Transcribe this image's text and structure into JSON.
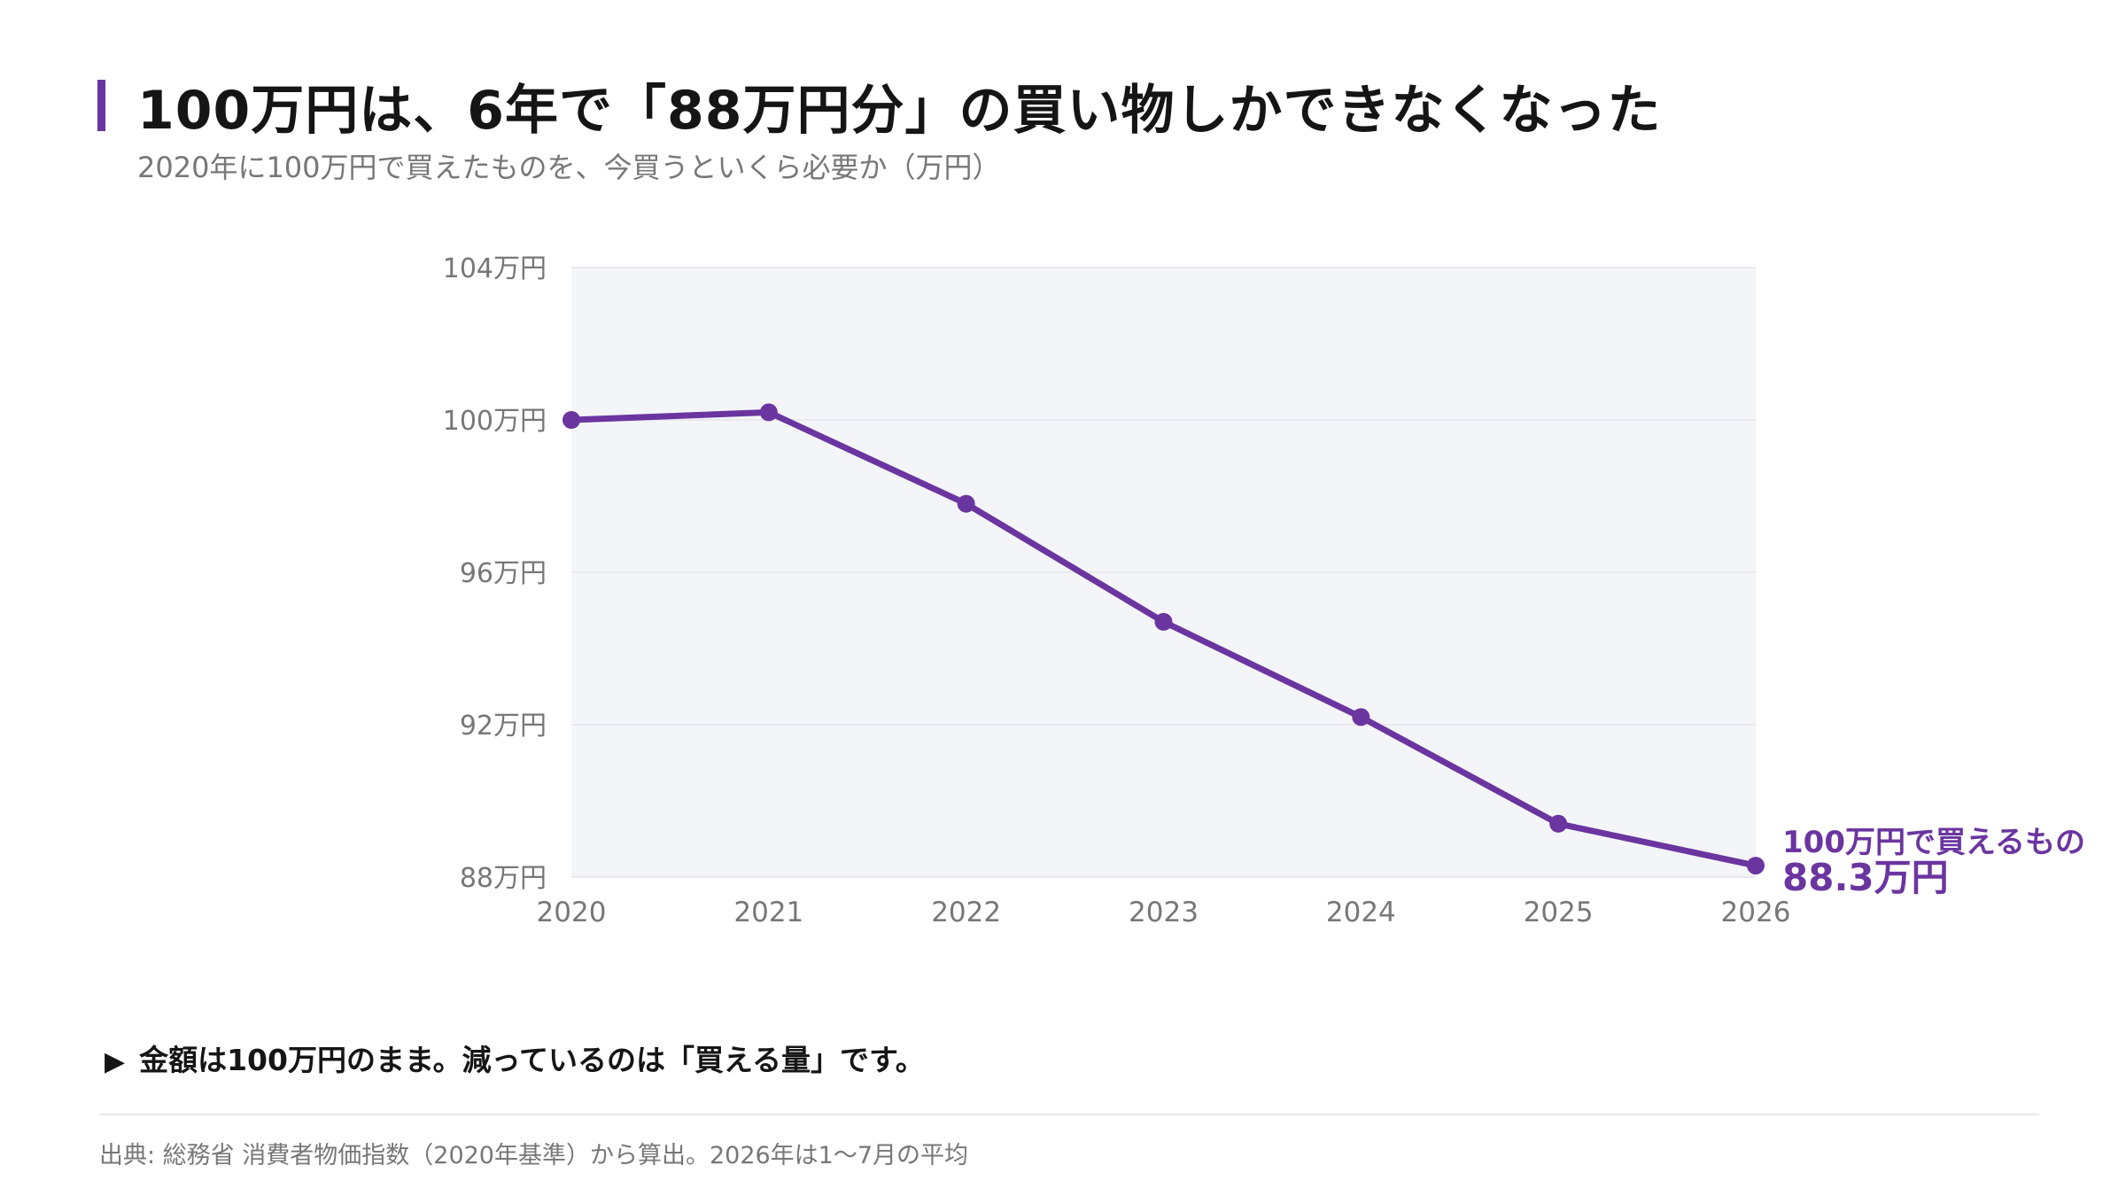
{
  "header": {
    "title": "100万円は、6年で「88万円分」の買い物しかできなくなった",
    "subtitle": "2020年に100万円で買えたものを、今買うといくら必要か（万円）"
  },
  "chart_data": {
    "type": "line",
    "title": "100万円は、6年で「88万円分」の買い物しかできなくなった",
    "subtitle": "2020年に100万円で買えたものを、今買うといくら必要か（万円）",
    "x": [
      "2020",
      "2021",
      "2022",
      "2023",
      "2024",
      "2025",
      "2026"
    ],
    "series": [
      {
        "name": "100万円で買えるもの",
        "values": [
          100.0,
          100.2,
          97.8,
          94.7,
          92.2,
          89.4,
          88.3
        ]
      }
    ],
    "yticks": [
      104,
      100,
      96,
      92,
      88
    ],
    "ytick_labels": [
      "104万円",
      "100万円",
      "96万円",
      "92万円",
      "88万円"
    ],
    "ylim": [
      88,
      104
    ],
    "grid": true,
    "end_label": {
      "series_name": "100万円で買えるもの",
      "value_label": "88.3万円"
    },
    "colors": {
      "line": "#6b35a0",
      "plot_background": "#f4f5f9",
      "grid": "#e3e4ea",
      "tick_text": "#777777"
    }
  },
  "note": {
    "marker": "▶",
    "text": "金額は100万円のまま。減っているのは「買える量」です。"
  },
  "source": "出典: 総務省 消費者物価指数（2020年基準）から算出。2026年は1〜7月の平均"
}
